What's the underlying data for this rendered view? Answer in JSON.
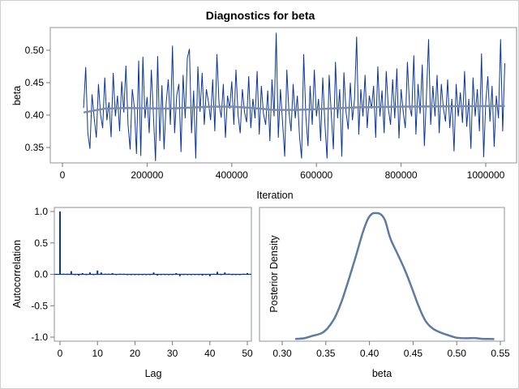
{
  "title": "Diagnostics for beta",
  "chart_data": [
    {
      "type": "line",
      "panel": "trace",
      "xlabel": "Iteration",
      "ylabel": "beta",
      "xlim": [
        0,
        1050000
      ],
      "ylim": [
        0.325,
        0.53
      ],
      "xticks": [
        0,
        200000,
        400000,
        600000,
        800000,
        1000000
      ],
      "xtick_labels": [
        "0",
        "200000",
        "400000",
        "600000",
        "800000",
        "1000000"
      ],
      "yticks": [
        0.35,
        0.4,
        0.45,
        0.5
      ],
      "ytick_labels": [
        "0.35",
        "0.40",
        "0.45",
        "0.50"
      ],
      "grid": false,
      "trace": {
        "x_start": 50000,
        "x_step": 5000,
        "color": "#0a36a0",
        "values": [
          0.411,
          0.474,
          0.372,
          0.348,
          0.432,
          0.395,
          0.365,
          0.448,
          0.401,
          0.38,
          0.458,
          0.392,
          0.42,
          0.366,
          0.465,
          0.398,
          0.43,
          0.375,
          0.452,
          0.404,
          0.476,
          0.385,
          0.347,
          0.44,
          0.412,
          0.34,
          0.484,
          0.337,
          0.49,
          0.395,
          0.428,
          0.372,
          0.47,
          0.4,
          0.329,
          0.491,
          0.36,
          0.446,
          0.347,
          0.418,
          0.455,
          0.385,
          0.507,
          0.372,
          0.43,
          0.448,
          0.343,
          0.462,
          0.395,
          0.488,
          0.502,
          0.372,
          0.438,
          0.333,
          0.475,
          0.405,
          0.465,
          0.385,
          0.44,
          0.42,
          0.392,
          0.455,
          0.375,
          0.494,
          0.418,
          0.396,
          0.448,
          0.365,
          0.43,
          0.41,
          0.452,
          0.385,
          0.47,
          0.4,
          0.372,
          0.44,
          0.405,
          0.389,
          0.46,
          0.38,
          0.425,
          0.395,
          0.468,
          0.37,
          0.445,
          0.402,
          0.385,
          0.438,
          0.36,
          0.455,
          0.398,
          0.527,
          0.365,
          0.44,
          0.39,
          0.336,
          0.47,
          0.405,
          0.375,
          0.448,
          0.395,
          0.43,
          0.368,
          0.333,
          0.494,
          0.4,
          0.352,
          0.445,
          0.385,
          0.47,
          0.398,
          0.425,
          0.36,
          0.458,
          0.388,
          0.333,
          0.462,
          0.402,
          0.347,
          0.482,
          0.395,
          0.44,
          0.336,
          0.466,
          0.405,
          0.378,
          0.45,
          0.392,
          0.425,
          0.521,
          0.37,
          0.44,
          0.398,
          0.462,
          0.38,
          0.43,
          0.41,
          0.445,
          0.365,
          0.475,
          0.398,
          0.438,
          0.372,
          0.468,
          0.41,
          0.385,
          0.455,
          0.395,
          0.472,
          0.364,
          0.44,
          0.405,
          0.38,
          0.482,
          0.415,
          0.398,
          0.492,
          0.37,
          0.448,
          0.402,
          0.478,
          0.352,
          0.43,
          0.517,
          0.385,
          0.445,
          0.398,
          0.462,
          0.372,
          0.448,
          0.41,
          0.39,
          0.455,
          0.38,
          0.425,
          0.344,
          0.448,
          0.398,
          0.435,
          0.388,
          0.468,
          0.382,
          0.425,
          0.348,
          0.458,
          0.398,
          0.44,
          0.375,
          0.495,
          0.335,
          0.42,
          0.46,
          0.39,
          0.445,
          0.351,
          0.43,
          0.395,
          0.517,
          0.375,
          0.48
        ]
      },
      "smooth": {
        "color": "#7b8da6",
        "x": [
          50000,
          100000,
          150000,
          250000,
          350000,
          400000,
          450000,
          500000,
          550000,
          600000,
          700000,
          800000,
          1045000
        ],
        "y": [
          0.404,
          0.41,
          0.411,
          0.41,
          0.413,
          0.413,
          0.411,
          0.408,
          0.408,
          0.409,
          0.412,
          0.413,
          0.414
        ]
      }
    },
    {
      "type": "bar",
      "panel": "autocorrelation",
      "xlabel": "Lag",
      "ylabel": "Autocorrelation",
      "xlim": [
        0,
        51
      ],
      "ylim": [
        -1.05,
        1.05
      ],
      "xticks": [
        0,
        10,
        20,
        30,
        40,
        50
      ],
      "xtick_labels": [
        "0",
        "10",
        "20",
        "30",
        "40",
        "50"
      ],
      "yticks": [
        -1.0,
        -0.5,
        0.0,
        0.5,
        1.0
      ],
      "ytick_labels": [
        "-1.0",
        "-0.5",
        "0.0",
        "0.5",
        "1.0"
      ],
      "grid": false,
      "color": "#0a36a0",
      "lags": [
        0,
        1,
        2,
        3,
        4,
        5,
        6,
        7,
        8,
        9,
        10,
        11,
        12,
        13,
        14,
        15,
        16,
        17,
        18,
        19,
        20,
        21,
        22,
        23,
        24,
        25,
        26,
        27,
        28,
        29,
        30,
        31,
        32,
        33,
        34,
        35,
        36,
        37,
        38,
        39,
        40,
        41,
        42,
        43,
        44,
        45,
        46,
        47,
        48,
        49,
        50
      ],
      "values": [
        1.0,
        0.01,
        0.01,
        0.05,
        -0.01,
        -0.02,
        0.02,
        -0.01,
        0.03,
        0.0,
        0.06,
        0.03,
        0.01,
        0.01,
        0.02,
        -0.01,
        0.01,
        0.01,
        0.0,
        -0.01,
        0.0,
        -0.01,
        0.0,
        -0.01,
        0.0,
        0.03,
        -0.02,
        -0.01,
        0.0,
        0.0,
        -0.01,
        0.02,
        -0.03,
        0.0,
        0.0,
        0.0,
        0.0,
        0.0,
        -0.02,
        0.0,
        -0.03,
        0.01,
        0.04,
        -0.01,
        0.03,
        0.01,
        0.0,
        -0.01,
        0.0,
        0.01,
        0.02
      ]
    },
    {
      "type": "line",
      "panel": "density",
      "xlabel": "beta",
      "ylabel": "Posterior Density",
      "xlim": [
        0.3,
        0.555
      ],
      "xticks": [
        0.3,
        0.35,
        0.4,
        0.45,
        0.5,
        0.55
      ],
      "xtick_labels": [
        "0.30",
        "0.35",
        "0.40",
        "0.45",
        "0.50",
        "0.55"
      ],
      "y_relative": true,
      "grid": false,
      "color": "#5f7aa2",
      "x": [
        0.315,
        0.325,
        0.335,
        0.345,
        0.352,
        0.36,
        0.368,
        0.376,
        0.384,
        0.392,
        0.398,
        0.403,
        0.408,
        0.413,
        0.418,
        0.424,
        0.432,
        0.44,
        0.448,
        0.456,
        0.464,
        0.472,
        0.48,
        0.49,
        0.5,
        0.51,
        0.52,
        0.53,
        0.543
      ],
      "y": [
        0.005,
        0.01,
        0.03,
        0.05,
        0.09,
        0.17,
        0.3,
        0.47,
        0.65,
        0.84,
        0.95,
        0.995,
        1.0,
        0.99,
        0.94,
        0.8,
        0.68,
        0.56,
        0.42,
        0.27,
        0.15,
        0.09,
        0.06,
        0.035,
        0.015,
        0.01,
        0.012,
        0.006,
        0.004
      ]
    }
  ]
}
